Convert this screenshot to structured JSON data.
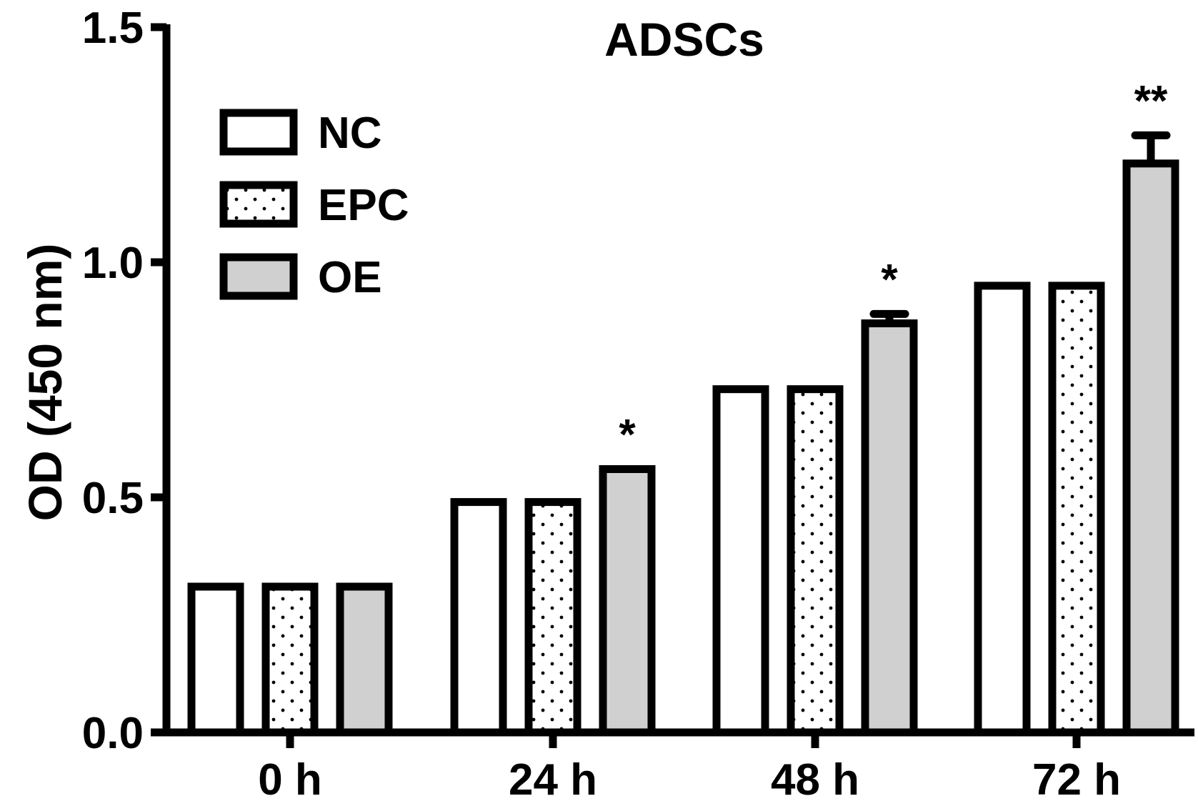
{
  "chart_data": {
    "type": "bar",
    "title": "ADSCs",
    "xlabel": "",
    "ylabel": "OD (450 nm)",
    "ylim": [
      0,
      1.5
    ],
    "yticks": [
      "0.0",
      "0.5",
      "1.0",
      "1.5"
    ],
    "ytick_values": [
      0,
      0.5,
      1.0,
      1.5
    ],
    "categories": [
      "0 h",
      "24 h",
      "48 h",
      "72 h"
    ],
    "series": [
      {
        "name": "NC",
        "values": [
          0.31,
          0.49,
          0.73,
          0.95
        ],
        "errors": [
          0.0,
          0.0,
          0.0,
          0.0
        ],
        "fill": "#ffffff",
        "pattern": "none"
      },
      {
        "name": "EPC",
        "values": [
          0.31,
          0.49,
          0.73,
          0.95
        ],
        "errors": [
          0.0,
          0.0,
          0.0,
          0.0
        ],
        "fill": "#ffffff",
        "pattern": "dots"
      },
      {
        "name": "OE",
        "values": [
          0.31,
          0.56,
          0.87,
          1.21
        ],
        "errors": [
          0.0,
          0.0,
          0.02,
          0.06
        ],
        "fill": "#d0d0d0",
        "pattern": "none"
      }
    ],
    "significance": [
      {
        "category": "24 h",
        "series": "OE",
        "label": "*"
      },
      {
        "category": "48 h",
        "series": "OE",
        "label": "*"
      },
      {
        "category": "72 h",
        "series": "OE",
        "label": "**"
      }
    ],
    "legend_position": "top-left",
    "grid": false,
    "colors": {
      "outline": "#000000",
      "oe_fill": "#d0d0d0",
      "background": "#ffffff"
    }
  }
}
